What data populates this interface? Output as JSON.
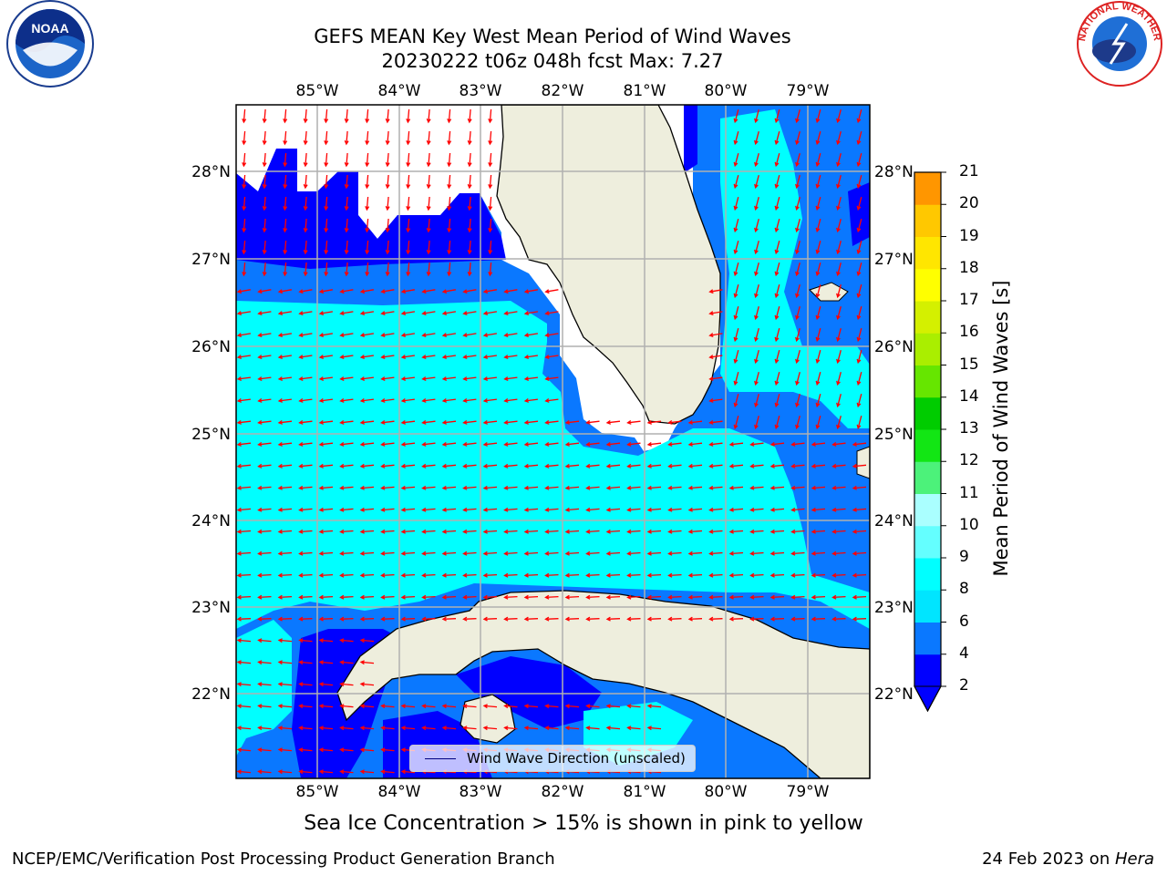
{
  "title_line1": "GEFS MEAN Key West Mean Period of Wind Waves",
  "title_line2": "20230222 t06z 048h fcst   Max: 7.27",
  "longitude_ticks": [
    "85°W",
    "84°W",
    "83°W",
    "82°W",
    "81°W",
    "80°W",
    "79°W"
  ],
  "latitude_ticks": [
    "28°N",
    "27°N",
    "26°N",
    "25°N",
    "24°N",
    "23°N",
    "22°N"
  ],
  "legend_label": "Wind Wave Direction (unscaled)",
  "colorbar": {
    "title": "Mean Period of Wind Waves [s]",
    "ticks": [
      "2",
      "4",
      "6",
      "8",
      "9",
      "10",
      "11",
      "12",
      "13",
      "14",
      "15",
      "16",
      "17",
      "18",
      "19",
      "20",
      "21"
    ],
    "colors": [
      "#0000ff",
      "#0a78ff",
      "#00e5ff",
      "#00ffff",
      "#64ffff",
      "#aaffff",
      "#4cf27a",
      "#12e614",
      "#00cc00",
      "#66e600",
      "#aaee00",
      "#d4f000",
      "#ffff00",
      "#ffe600",
      "#ffc800",
      "#ff9600",
      "#ff6e00",
      "#ff4600",
      "#ff1e00",
      "#ff0000"
    ]
  },
  "ice_note": "Sea Ice Concentration > 15% is shown in pink to yellow",
  "footer_left": "NCEP/EMC/Verification Post Processing Product Generation Branch",
  "footer_date": "24 Feb 2023 on ",
  "footer_machine": "Hera",
  "noaa_logo_text": "NOAA",
  "nws_logo_text": "NATIONAL WEATHER SERVICE",
  "colors": {
    "land": "#eeeedd",
    "arrow": "#ff0000",
    "grid": "#b0b0b0"
  }
}
